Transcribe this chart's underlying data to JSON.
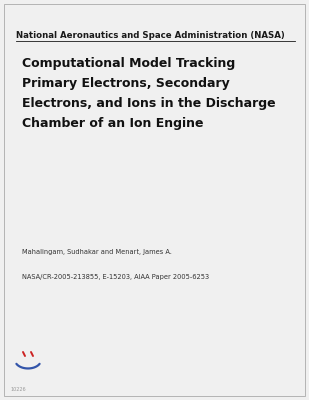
{
  "background_color": "#f0f0f0",
  "border_color": "#aaaaaa",
  "nasa_label": "National Aeronautics and Space Administration (NASA)",
  "nasa_label_fontsize": 6.2,
  "title_line1": "Computational Model Tracking",
  "title_line2": "Primary Electrons, Secondary",
  "title_line3": "Electrons, and Ions in the Discharge",
  "title_line4": "Chamber of an Ion Engine",
  "title_fontsize": 9.0,
  "author_text": "Mahalingam, Sudhakar and Menart, James A.",
  "author_fontsize": 4.8,
  "report_text": "NASA/CR-2005-213855, E-15203, AIAA Paper 2005-6253",
  "report_fontsize": 4.8,
  "smiley_color_face": "#3355aa",
  "smiley_color_eyes": "#cc2222",
  "watermark_text": "10226",
  "watermark_fontsize": 3.5
}
